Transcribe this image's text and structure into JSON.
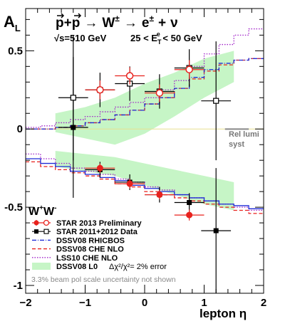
{
  "chart_data": {
    "type": "scatter",
    "ylabel": "A",
    "ylabel_sub": "L",
    "xlabel": "lepton η",
    "xlim": [
      -2,
      2
    ],
    "ylim": [
      -1.05,
      0.77
    ],
    "x_ticks": [
      -2,
      -1,
      0,
      1,
      2
    ],
    "y_ticks": [
      -1,
      -0.5,
      0,
      0.5
    ],
    "y_tick_labels": [
      "-1",
      "-0.5",
      "0",
      "0.5"
    ],
    "x_tick_labels": [
      "−2",
      "−1",
      "0",
      "1",
      "2"
    ],
    "reaction": {
      "p1": "p",
      "plus": "+",
      "p2": "p",
      "arrow1": "→",
      "w": "W",
      "w_sup": "±",
      "arrow2": "→",
      "e": "e",
      "e_sup": "±",
      "plus2": "+",
      "nu": "ν"
    },
    "energy_label": "√s=510 GeV",
    "et_cut": {
      "prefix": "25 < E",
      "sub": "T",
      "sup": "e",
      "suffix": " < 50 GeV"
    },
    "rel_lumi_label": [
      "Rel lumi",
      "syst"
    ],
    "boson_label": {
      "w1": "W",
      "w1_sup": "+",
      "w2": "W",
      "w2_sup": "-"
    },
    "footnote": "3.3% beam pol scale uncertainty not shown",
    "zero_line_color": "#e8e090",
    "colors": {
      "star2013": "#e8221d",
      "star2011": "#000000",
      "rhicbos": "#1f2bd6",
      "che": "#e8221d",
      "lss": "#a020c8",
      "band": "#c6f5c6",
      "lumi": "#888888"
    },
    "star2013_wplus": {
      "x": [
        -0.75,
        -0.25,
        0.25,
        0.75
      ],
      "y": [
        -0.25,
        -0.35,
        -0.42,
        -0.55
      ],
      "yerr": [
        0.03,
        0.03,
        0.03,
        0.035
      ],
      "xerr": [
        0.25,
        0.25,
        0.25,
        0.25
      ]
    },
    "star2013_wminus": {
      "x": [
        -0.75,
        -0.25,
        0.25,
        0.75
      ],
      "y": [
        0.25,
        0.34,
        0.23,
        0.38
      ],
      "yerr": [
        0.06,
        0.055,
        0.055,
        0.06
      ],
      "xerr": [
        0.25,
        0.25,
        0.25,
        0.25
      ]
    },
    "star2011_wplus": {
      "x": [
        -1.2,
        -0.75,
        -0.25,
        0.25,
        0.75,
        1.2
      ],
      "y": [
        0.01,
        -0.26,
        -0.34,
        -0.42,
        -0.47,
        -0.65
      ],
      "yerr": [
        0.45,
        0.05,
        0.05,
        0.05,
        0.06,
        0.4
      ],
      "xerr": [
        0.25,
        0.25,
        0.25,
        0.25,
        0.25,
        0.25
      ]
    },
    "star2011_wminus": {
      "x": [
        -1.2,
        -0.75,
        -0.25,
        0.25,
        0.75,
        1.2
      ],
      "y": [
        0.2,
        0.25,
        0.29,
        0.24,
        0.39,
        0.18
      ],
      "yerr": [
        0.4,
        0.11,
        0.11,
        0.11,
        0.12,
        0.38
      ],
      "xerr": [
        0.25,
        0.25,
        0.25,
        0.25,
        0.25,
        0.25
      ]
    },
    "theory_x_edges": [
      -2,
      -1.75,
      -1.5,
      -1.25,
      -1,
      -0.75,
      -0.5,
      -0.25,
      0,
      0.25,
      0.5,
      0.75,
      1,
      1.25,
      1.5,
      1.75,
      2
    ],
    "rhicbos_wplus": [
      -0.19,
      -0.22,
      -0.24,
      -0.27,
      -0.29,
      -0.31,
      -0.33,
      -0.36,
      -0.38,
      -0.4,
      -0.42,
      -0.44,
      -0.46,
      -0.48,
      -0.49,
      -0.51
    ],
    "che_wplus": [
      -0.21,
      -0.24,
      -0.26,
      -0.28,
      -0.3,
      -0.32,
      -0.35,
      -0.37,
      -0.4,
      -0.42,
      -0.44,
      -0.46,
      -0.48,
      -0.5,
      -0.52,
      -0.54
    ],
    "lss_wplus": [
      -0.16,
      -0.19,
      -0.22,
      -0.25,
      -0.27,
      -0.29,
      -0.32,
      -0.34,
      -0.37,
      -0.39,
      -0.42,
      -0.44,
      -0.46,
      -0.48,
      -0.5,
      -0.52
    ],
    "rhicbos_wminus": [
      0.0,
      0.0,
      0.01,
      0.02,
      0.04,
      0.06,
      0.09,
      0.12,
      0.16,
      0.2,
      0.26,
      0.33,
      0.38,
      0.42,
      0.44,
      0.45
    ],
    "che_wminus": [
      0.0,
      0.0,
      0.01,
      0.02,
      0.04,
      0.06,
      0.09,
      0.12,
      0.16,
      0.2,
      0.26,
      0.32,
      0.37,
      0.41,
      0.44,
      0.45
    ],
    "lss_wminus": [
      0.01,
      0.02,
      0.04,
      0.06,
      0.08,
      0.11,
      0.14,
      0.17,
      0.2,
      0.25,
      0.31,
      0.4,
      0.48,
      0.54,
      0.6,
      0.64
    ],
    "band_wplus": {
      "x": [
        -1.5,
        -1.0,
        -0.5,
        0.0,
        0.5,
        1.0,
        1.5
      ],
      "low": [
        -0.24,
        -0.27,
        -0.3,
        -0.36,
        -0.42,
        -0.48,
        -0.52
      ],
      "high": [
        -0.14,
        -0.16,
        -0.18,
        -0.22,
        -0.26,
        -0.3,
        -0.34
      ]
    },
    "band_wminus": {
      "x": [
        -1.5,
        -1.0,
        -0.5,
        0.0,
        0.5,
        1.0,
        1.5
      ],
      "low": [
        -0.02,
        -0.06,
        -0.1,
        -0.03,
        0.08,
        0.2,
        0.3
      ],
      "high": [
        0.1,
        0.14,
        0.2,
        0.29,
        0.36,
        0.45,
        0.5
      ]
    },
    "lumi_syst": 0.004,
    "legend": [
      {
        "label": "STAR 2013 Preliminary",
        "kind": "circle"
      },
      {
        "label": "STAR 2011+2012 Data",
        "kind": "square"
      },
      {
        "label": "DSSV08  RHICBOS",
        "kind": "rhicbos"
      },
      {
        "label": "DSSV08  CHE NLO",
        "kind": "che"
      },
      {
        "label": "LSS10 CHE NLO",
        "kind": "lss"
      },
      {
        "label": "DSSV08 L0",
        "kind": "band",
        "extra": "Δχ²/χ²= 2% error"
      }
    ]
  }
}
